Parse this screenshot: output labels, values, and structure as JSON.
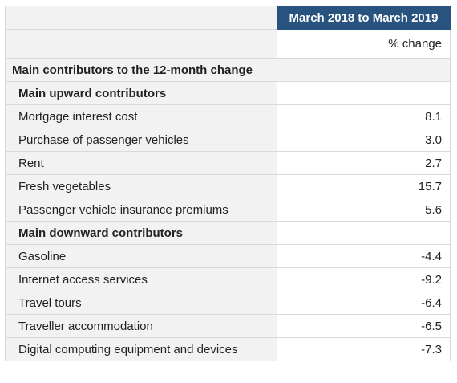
{
  "table": {
    "period_header": "March 2018 to March 2019",
    "units": "% change",
    "section_title": "Main contributors to the 12-month change",
    "upward": {
      "title": "Main upward contributors",
      "items": [
        {
          "label": "Mortgage interest cost",
          "value": "8.1"
        },
        {
          "label": "Purchase of passenger vehicles",
          "value": "3.0"
        },
        {
          "label": "Rent",
          "value": "2.7"
        },
        {
          "label": "Fresh vegetables",
          "value": "15.7"
        },
        {
          "label": "Passenger vehicle insurance premiums",
          "value": "5.6"
        }
      ]
    },
    "downward": {
      "title": "Main downward contributors",
      "items": [
        {
          "label": "Gasoline",
          "value": "-4.4"
        },
        {
          "label": "Internet access services",
          "value": "-9.2"
        },
        {
          "label": "Travel tours",
          "value": "-6.4"
        },
        {
          "label": "Traveller accommodation",
          "value": "-6.5"
        },
        {
          "label": "Digital computing equipment and devices",
          "value": "-7.3"
        }
      ]
    },
    "colors": {
      "header_bg": "#27537e",
      "header_text": "#ffffff",
      "label_bg": "#f2f2f2",
      "border": "#d9d9d9"
    }
  }
}
